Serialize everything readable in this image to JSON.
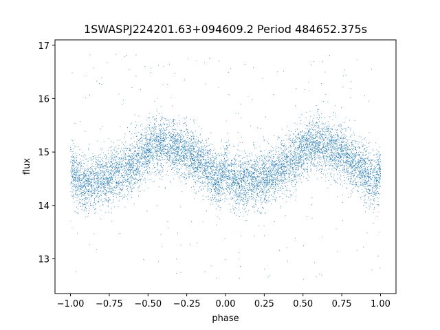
{
  "chart_data": {
    "type": "scatter",
    "title": "1SWASPJ224201.63+094609.2 Period 484652.375s",
    "xlabel": "phase",
    "ylabel": "flux",
    "xlim": [
      -1.1,
      1.1
    ],
    "ylim": [
      12.35,
      17.1
    ],
    "xticks": [
      -1.0,
      -0.75,
      -0.5,
      -0.25,
      0.0,
      0.25,
      0.5,
      0.75,
      1.0
    ],
    "xtick_labels": [
      "−1.00",
      "−0.75",
      "−0.50",
      "−0.25",
      "0.00",
      "0.25",
      "0.50",
      "0.75",
      "1.00"
    ],
    "yticks": [
      13,
      14,
      15,
      16,
      17
    ],
    "ytick_labels": [
      "13",
      "14",
      "15",
      "16",
      "17"
    ],
    "grid": false,
    "point_color": "#1f77b4",
    "series": [
      {
        "profile": {
          "phase": [
            0.0,
            0.03,
            0.08,
            0.15,
            0.22,
            0.3,
            0.36,
            0.42,
            0.48,
            0.55,
            0.62,
            0.7,
            0.78,
            0.85,
            0.92,
            0.97,
            1.0
          ],
          "flux": [
            14.7,
            14.5,
            14.4,
            14.45,
            14.5,
            14.6,
            14.7,
            14.8,
            15.0,
            15.15,
            15.15,
            15.05,
            14.95,
            14.8,
            14.55,
            14.45,
            14.7
          ]
        },
        "scatter_sigma": 0.25,
        "outlier_range": [
          12.6,
          16.9
        ],
        "point_count": 9000,
        "phase_range": [
          -1.0,
          1.0
        ]
      }
    ]
  }
}
